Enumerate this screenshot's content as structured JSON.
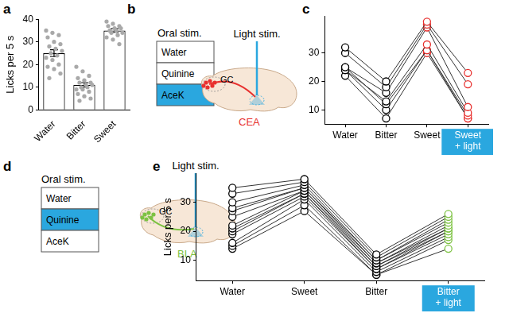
{
  "chart_data": [
    {
      "panel": "a",
      "type": "bar",
      "categories": [
        "Water",
        "Bitter",
        "Sweet"
      ],
      "values": [
        25,
        11,
        35
      ],
      "error": [
        1.5,
        1.0,
        0.8
      ],
      "points": [
        [
          35,
          34,
          33,
          32,
          30,
          29,
          28,
          27,
          26,
          25,
          24,
          23,
          22,
          20,
          19,
          18,
          16,
          14
        ],
        [
          19,
          17,
          15,
          14,
          13,
          12,
          12,
          11,
          11,
          10,
          10,
          9,
          9,
          8,
          7,
          6,
          5,
          4
        ],
        [
          39,
          38,
          37,
          37,
          36,
          36,
          35,
          35,
          34,
          34,
          33,
          32,
          31,
          29
        ]
      ],
      "color": "#ffffff",
      "ylabel": "Licks per 5 s",
      "ylim": [
        0,
        40
      ],
      "yticks": [
        0,
        10,
        20,
        30,
        40
      ],
      "grid": false
    },
    {
      "panel": "c",
      "type": "line",
      "categories": [
        "Water",
        "Bitter",
        "Sweet",
        "Sweet + light"
      ],
      "series": [
        {
          "values": [
            32,
            20,
            41,
            23
          ]
        },
        {
          "values": [
            30,
            18,
            40,
            19
          ]
        },
        {
          "values": [
            25,
            16,
            39,
            11
          ]
        },
        {
          "values": [
            24,
            13,
            33,
            9
          ]
        },
        {
          "values": [
            25,
            12,
            31,
            8
          ]
        },
        {
          "values": [
            24,
            10,
            31,
            7
          ]
        },
        {
          "values": [
            22,
            7,
            30,
            7
          ]
        }
      ],
      "colors": [
        "#000000",
        "#000000",
        "#e8312f",
        "#e8312f"
      ],
      "marker": "circle",
      "ylim": [
        5,
        43
      ],
      "yticks": [
        10,
        20,
        30
      ],
      "grid": false
    },
    {
      "panel": "e",
      "type": "line",
      "categories": [
        "Water",
        "Sweet",
        "Bitter",
        "Bitter + light"
      ],
      "series": [
        {
          "values": [
            35,
            38,
            12,
            26
          ]
        },
        {
          "values": [
            33,
            37,
            11,
            25
          ]
        },
        {
          "values": [
            30,
            36,
            10,
            24
          ]
        },
        {
          "values": [
            28,
            35,
            10,
            23
          ]
        },
        {
          "values": [
            27,
            35,
            9,
            22
          ]
        },
        {
          "values": [
            25,
            34,
            9,
            21
          ]
        },
        {
          "values": [
            22,
            34,
            8,
            21
          ]
        },
        {
          "values": [
            21,
            33,
            8,
            20
          ]
        },
        {
          "values": [
            20,
            33,
            7,
            20
          ]
        },
        {
          "values": [
            19,
            32,
            7,
            19
          ]
        },
        {
          "values": [
            16,
            31,
            6,
            18
          ]
        },
        {
          "values": [
            15,
            29,
            5,
            17
          ]
        },
        {
          "values": [
            14,
            27,
            5,
            14
          ]
        }
      ],
      "colors": [
        "#000000",
        "#000000",
        "#000000",
        "#7dc242"
      ],
      "marker": "circle",
      "ylabel": "Licks per 5 s",
      "ylim": [
        3,
        40
      ],
      "yticks": [
        10,
        20,
        30
      ],
      "grid": false
    }
  ],
  "diagrams": [
    {
      "panel": "b",
      "title": "Oral stim.",
      "stimuli": [
        "Water",
        "Quinine",
        "AceK"
      ],
      "highlighted": "AceK",
      "light": "Light stim.",
      "source": "GC",
      "target": "CEA",
      "color": "#e8312f"
    },
    {
      "panel": "d",
      "title": "Oral stim.",
      "stimuli": [
        "Water",
        "Quinine",
        "AceK"
      ],
      "highlighted": "Quinine",
      "light": "Light stim.",
      "source": "GC",
      "target": "BLA",
      "color": "#7dc242"
    }
  ]
}
